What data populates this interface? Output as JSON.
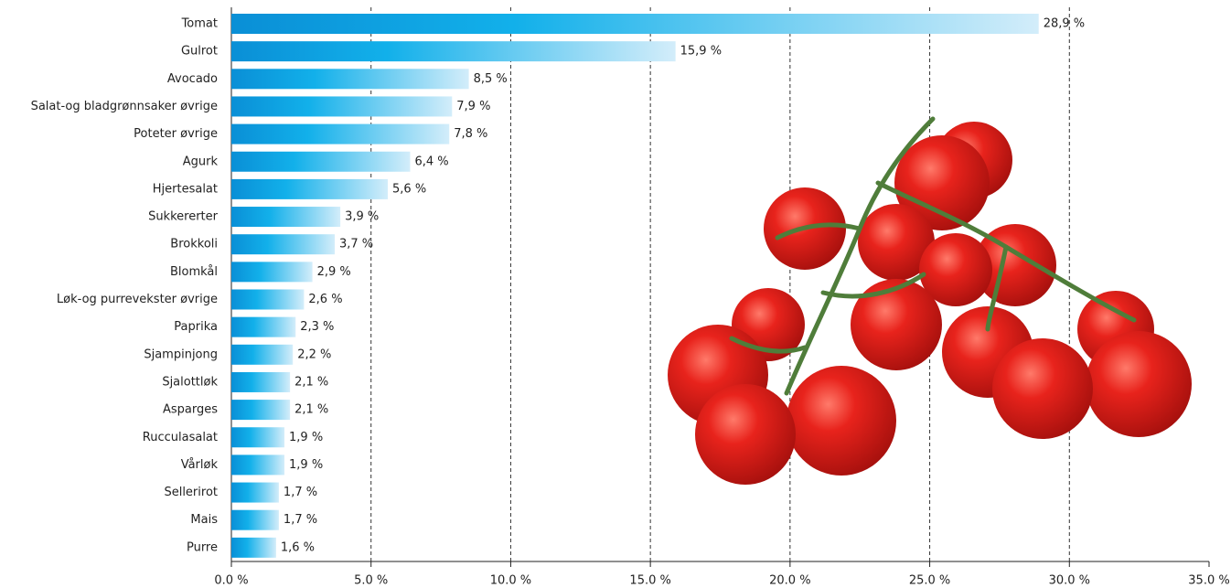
{
  "chart_data": {
    "type": "hbar",
    "categories": [
      "Tomat",
      "Gulrot",
      "Avocado",
      "Salat-og bladgrønnsaker øvrige",
      "Poteter øvrige",
      "Agurk",
      "Hjertesalat",
      "Sukkererter",
      "Brokkoli",
      "Blomkål",
      "Løk-og purrevekster øvrige",
      "Paprika",
      "Sjampinjong",
      "Sjalottløk",
      "Asparges",
      "Rucculasalat",
      "Vårløk",
      "Sellerirot",
      "Mais",
      "Purre"
    ],
    "values": [
      28.9,
      15.9,
      8.5,
      7.9,
      7.8,
      6.4,
      5.6,
      3.9,
      3.7,
      2.9,
      2.6,
      2.3,
      2.2,
      2.1,
      2.1,
      1.9,
      1.9,
      1.7,
      1.7,
      1.6
    ],
    "value_labels": [
      "28,9 %",
      "15,9 %",
      "8,5 %",
      "7,9 %",
      "7,8 %",
      "6,4 %",
      "5,6 %",
      "3,9 %",
      "3,7 %",
      "2,9 %",
      "2,6 %",
      "2,3 %",
      "2,2 %",
      "2,1 %",
      "2,1 %",
      "1,9 %",
      "1,9 %",
      "1,7 %",
      "1,7 %",
      "1,6 %"
    ],
    "color": "#0a8fd6",
    "xlim": [
      0,
      35
    ],
    "xticks": [
      {
        "value": 0,
        "label": "0.0 %"
      },
      {
        "value": 5,
        "label": "5.0 %"
      },
      {
        "value": 10,
        "label": "10.0 %"
      },
      {
        "value": 15,
        "label": "15.0 %"
      },
      {
        "value": 20,
        "label": "20.0 %"
      },
      {
        "value": 25,
        "label": "25.0 %"
      },
      {
        "value": 30,
        "label": "30.0 %"
      },
      {
        "value": 35,
        "label": "35.0 %"
      }
    ],
    "grid": true
  }
}
